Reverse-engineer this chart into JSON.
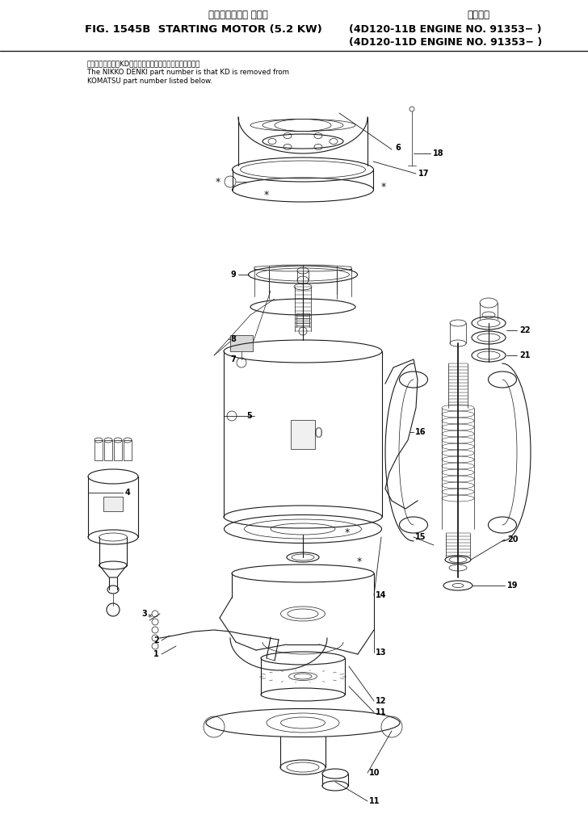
{
  "title_japanese_top": "スターティング モータ",
  "title_japanese_right": "適用号機",
  "title_main": "FIG. 1545B  STARTING MOTOR (5.2 KW)",
  "title_right1": "(4D120-11B ENGINE NO. 91353− )",
  "title_right2": "(4D120-11D ENGINE NO. 91353− )",
  "note_japanese": "品番のメーカ記号KDを除いたものが日質電機の品番です。",
  "note_english1": "The NIKKO DENKI part number is that KD is removed from",
  "note_english2": "KOMATSU part number listed below.",
  "bg_color": "#ffffff",
  "line_color": "#1a1a1a",
  "text_color": "#000000",
  "fig_width": 7.28,
  "fig_height": 10.24,
  "dpi": 100
}
